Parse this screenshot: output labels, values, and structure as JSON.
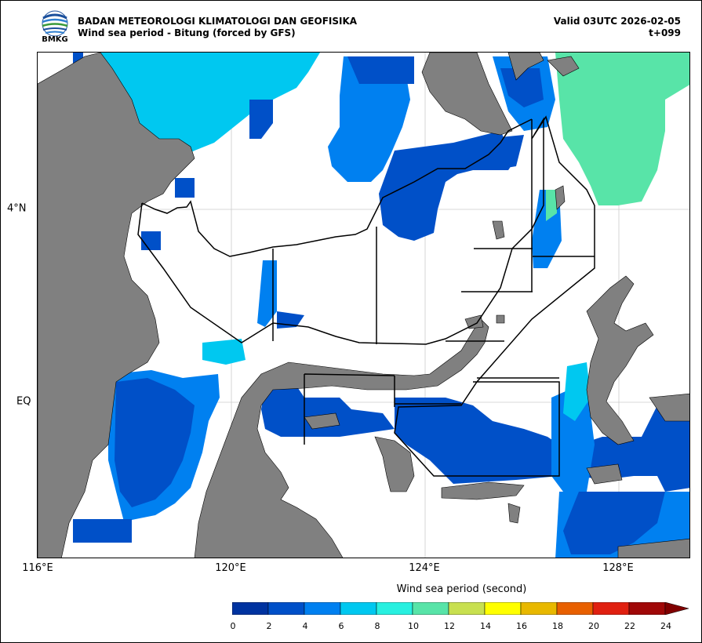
{
  "header": {
    "org_title": "BADAN METEOROLOGI KLIMATOLOGI DAN GEOFISIKA",
    "subtitle": "Wind sea period - Bitung (forced by GFS)",
    "valid": "Valid 03UTC 2026-02-05",
    "lead": "t+099"
  },
  "logo": {
    "text": "BMKG"
  },
  "axes": {
    "x_ticks": [
      "116°E",
      "120°E",
      "124°E",
      "128°E"
    ],
    "y_ticks": [
      "4°N",
      "EQ"
    ]
  },
  "colorbar": {
    "title": "Wind sea period (second)",
    "ticks": [
      "0",
      "2",
      "4",
      "6",
      "8",
      "10",
      "12",
      "14",
      "16",
      "18",
      "20",
      "22",
      "24"
    ],
    "colors": [
      "#0033a0",
      "#0050c8",
      "#0080f0",
      "#00c8f0",
      "#28f0e0",
      "#58e4a8",
      "#c8e050",
      "#ffff00",
      "#e8b800",
      "#e86000",
      "#e02010",
      "#a00808"
    ],
    "extend_color": "#800000"
  },
  "colors": {
    "land": "#808080",
    "grid": "#cccccc",
    "boundary": "#000000"
  }
}
